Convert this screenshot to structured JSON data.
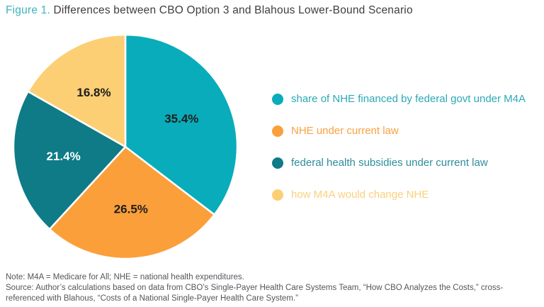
{
  "title": {
    "prefix": "Figure 1.",
    "text": "Differences between CBO Option 3 and Blahous Lower-Bound Scenario"
  },
  "chart_data": {
    "type": "pie",
    "title": "Differences between CBO Option 3 and Blahous Lower-Bound Scenario",
    "start_angle_deg": 0,
    "direction": "clockwise",
    "legend_position": "right",
    "slices": [
      {
        "label": "share of NHE financed by federal govt under M4A",
        "value": 35.4,
        "display": "35.4%",
        "color": "#09acba",
        "label_text_color": "#1e1e1e",
        "legend_text_color": "#2ba9b4"
      },
      {
        "label": "NHE under current law",
        "value": 26.5,
        "display": "26.5%",
        "color": "#fb9f3b",
        "label_text_color": "#1e1e1e",
        "legend_text_color": "#f9a041"
      },
      {
        "label": "federal health subsidies under current law",
        "value": 21.4,
        "display": "21.4%",
        "color": "#0e7b87",
        "label_text_color": "#ffffff",
        "legend_text_color": "#2d8d9c"
      },
      {
        "label": "how M4A would change NHE",
        "value": 16.8,
        "display": "16.8%",
        "color": "#fdcf74",
        "label_text_color": "#1e1e1e",
        "legend_text_color": "#fbd07c"
      }
    ]
  },
  "footer": {
    "note": "Note: M4A = Medicare for All; NHE = national health expenditures.",
    "source": "Source: Author’s calculations based on data from CBO’s Single-Payer Health Care Systems Team, “How CBO Analyzes the Costs,” cross-referenced with Blahous, “Costs of a National Single-Payer Health Care System.”"
  }
}
